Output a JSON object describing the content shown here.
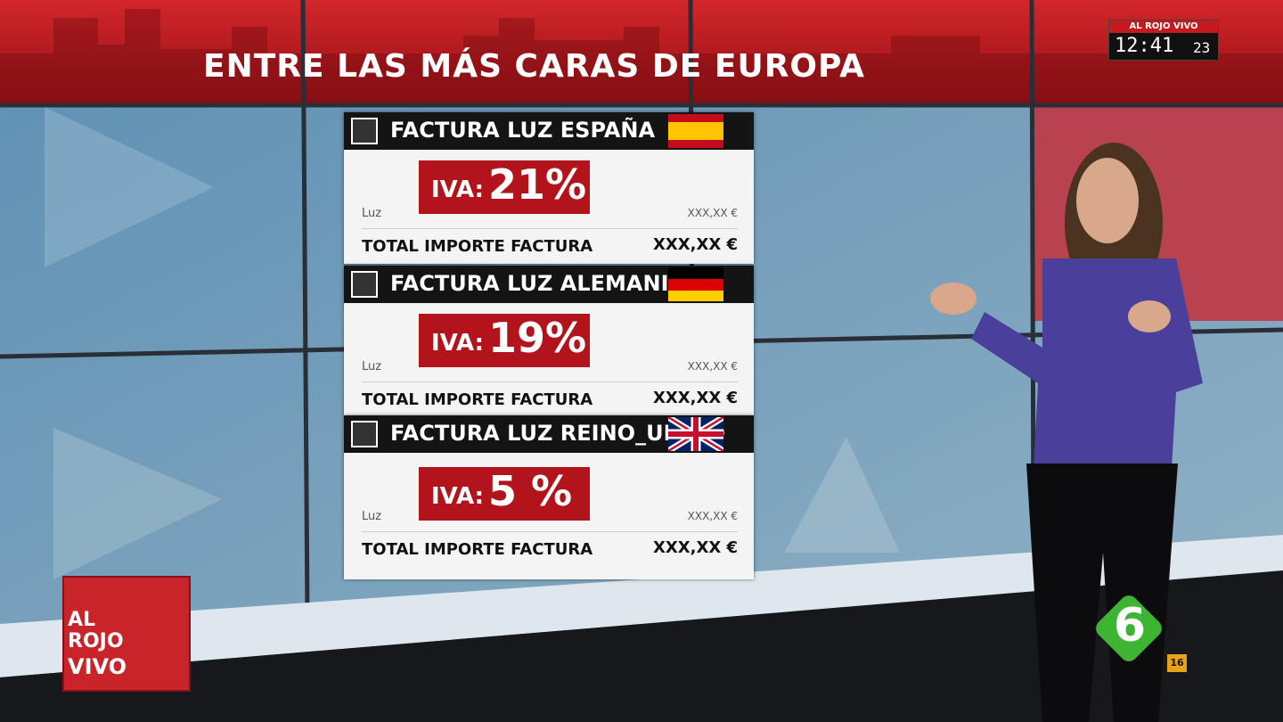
{
  "header": {
    "title": "ENTRE LAS MÁS CARAS DE EUROPA"
  },
  "clock": {
    "brand": "AL ROJO VIVO",
    "time": "12:41",
    "seconds": "23"
  },
  "cards": [
    {
      "title": "FACTURA LUZ ESPAÑA",
      "iva_label": "IVA:",
      "iva": "21%",
      "line_label": "Luz",
      "line_amount": "XXX,XX €",
      "total_label": "TOTAL IMPORTE FACTURA",
      "total_amount": "XXX,XX €"
    },
    {
      "title": "FACTURA LUZ ALEMANIA",
      "iva_label": "IVA:",
      "iva": "19%",
      "line_label": "Luz",
      "line_amount": "XXX,XX €",
      "total_label": "TOTAL IMPORTE FACTURA",
      "total_amount": "XXX,XX €"
    },
    {
      "title": "FACTURA LUZ REINO_UNIDO",
      "iva_label": "IVA:",
      "iva": "5 %",
      "line_label": "Luz",
      "line_amount": "XXX,XX €",
      "total_label": "TOTAL IMPORTE FACTURA",
      "total_amount": "XXX,XX €"
    }
  ],
  "logo": {
    "line1": "AL ROJO",
    "line2": "VIVO"
  },
  "channel": {
    "name": "6",
    "rating": "16"
  }
}
